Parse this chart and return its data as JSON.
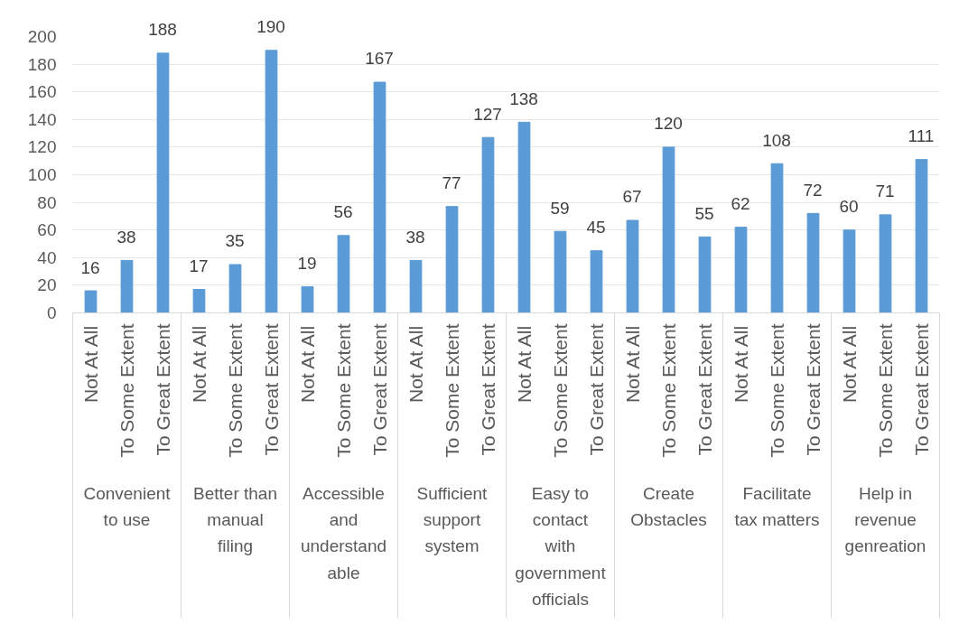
{
  "chart_data": {
    "type": "bar",
    "categories": [
      "Not At All",
      "To Some Extent",
      "To Great Extent",
      "Not At All",
      "To Some Extent",
      "To Great Extent",
      "Not At All",
      "To Some Extent",
      "To Great Extent",
      "Not At All",
      "To Some Extent",
      "To Great Extent",
      "Not At All",
      "To Some Extent",
      "To Great Extent",
      "Not At All",
      "To Some Extent",
      "To Great Extent",
      "Not At All",
      "To Some Extent",
      "To Great Extent",
      "Not At All",
      "To Some Extent",
      "To Great Extent"
    ],
    "values": [
      16,
      38,
      188,
      17,
      35,
      190,
      19,
      56,
      167,
      38,
      77,
      127,
      138,
      59,
      45,
      67,
      120,
      55,
      62,
      108,
      72,
      60,
      71,
      111
    ],
    "color": "#5b9bd5",
    "annotations": [
      "Convenient to use",
      "Better than manual filing",
      "Accessible and understandable",
      "Sufficient support system",
      "Easy to contact with government officials",
      "Create Obstacles",
      "Facilitate tax matters",
      "Help in revenue genreation"
    ],
    "ylim": [
      0,
      200
    ],
    "yticks": [
      0,
      20,
      40,
      60,
      80,
      100,
      120,
      140,
      160,
      180,
      200
    ],
    "grid": "y",
    "data_labels": true
  }
}
